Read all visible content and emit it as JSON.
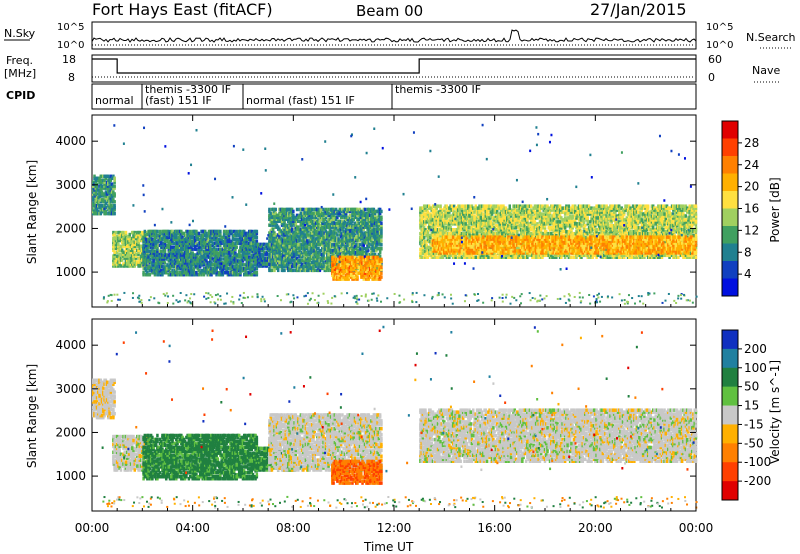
{
  "header": {
    "station": "Fort Hays East (fitACF)",
    "beam": "Beam 00",
    "date": "27/Jan/2015"
  },
  "noise_panel": {
    "left_label": "N.Sky",
    "right_label": "N.Search",
    "left_ticks": [
      "10^5",
      "10^0"
    ],
    "right_ticks": [
      "10^5",
      "10^0"
    ]
  },
  "freq_panel": {
    "left_label_1": "Freq.",
    "left_label_2": "[MHz]",
    "right_label": "Nave",
    "left_ticks": [
      "18",
      "8"
    ],
    "right_ticks": [
      "60",
      "0"
    ]
  },
  "cpid_panel": {
    "label": "CPID",
    "entries": [
      {
        "text": "normal",
        "start_h": 0.0
      },
      {
        "text": "themis -3300 IF",
        "start_h": 2.0
      },
      {
        "text": "(fast) 151 IF",
        "start_h": 0.0
      },
      {
        "text": "normal (fast) 151 IF",
        "start_h": 6.0
      },
      {
        "text": "themis -3300 IF",
        "start_h": 13.0
      }
    ]
  },
  "axes": {
    "xlabel": "Time UT",
    "xticks": [
      "00:00",
      "04:00",
      "08:00",
      "12:00",
      "16:00",
      "20:00",
      "00:00"
    ],
    "ylabel": "Slant Range [km]",
    "yticks": [
      "4000",
      "3000",
      "2000",
      "1000"
    ]
  },
  "power_scale": {
    "label": "Power [dB]",
    "ticks": [
      "28",
      "24",
      "20",
      "16",
      "12",
      "8",
      "4"
    ],
    "colors": [
      "#e00000",
      "#ff4000",
      "#ff8000",
      "#ffb000",
      "#ffe040",
      "#a0d060",
      "#40a060",
      "#208090",
      "#1040c0",
      "#0010e0"
    ]
  },
  "velocity_scale": {
    "label": "Velocity [m s^-1]",
    "ticks": [
      "200",
      "100",
      "50",
      "15",
      "-15",
      "-50",
      "-100",
      "-200"
    ],
    "colors": [
      "#1030c0",
      "#2080a0",
      "#208040",
      "#60c040",
      "#c8c8c8",
      "#ffb000",
      "#ff8000",
      "#ff4000",
      "#e00000"
    ]
  },
  "chart_data": [
    {
      "type": "heatmap",
      "title": "Power",
      "xlabel": "Time UT",
      "ylabel": "Slant Range [km]",
      "xlim": [
        0,
        24
      ],
      "ylim": [
        200,
        4600
      ],
      "colorbar": {
        "label": "Power [dB]",
        "range": [
          0,
          32
        ]
      },
      "regions": [
        {
          "t0": 0.0,
          "t1": 0.9,
          "r0": 2300,
          "r1": 3200,
          "value": 10
        },
        {
          "t0": 0.8,
          "t1": 2.2,
          "r0": 1100,
          "r1": 1900,
          "value": 14
        },
        {
          "t0": 2.0,
          "t1": 6.5,
          "r0": 900,
          "r1": 1900,
          "value": 9
        },
        {
          "t0": 6.5,
          "t1": 8.0,
          "r0": 1100,
          "r1": 1600,
          "value": 8
        },
        {
          "t0": 7.0,
          "t1": 11.5,
          "r0": 1000,
          "r1": 2400,
          "value": 10
        },
        {
          "t0": 9.5,
          "t1": 11.5,
          "r0": 800,
          "r1": 1300,
          "value": 22
        },
        {
          "t0": 13.0,
          "t1": 24.0,
          "r0": 1300,
          "r1": 2500,
          "value": 15
        },
        {
          "t0": 13.5,
          "t1": 24.0,
          "r0": 1400,
          "r1": 1800,
          "value": 21
        }
      ]
    },
    {
      "type": "heatmap",
      "title": "Velocity",
      "xlabel": "Time UT",
      "ylabel": "Slant Range [km]",
      "xlim": [
        0,
        24
      ],
      "ylim": [
        200,
        4600
      ],
      "colorbar": {
        "label": "Velocity [m s^-1]",
        "range": [
          -200,
          200
        ]
      },
      "regions": [
        {
          "t0": 0.0,
          "t1": 0.9,
          "r0": 2300,
          "r1": 3200,
          "value": -5
        },
        {
          "t0": 0.8,
          "t1": 2.2,
          "r0": 1100,
          "r1": 1900,
          "value": 0
        },
        {
          "t0": 2.0,
          "t1": 6.5,
          "r0": 900,
          "r1": 1900,
          "value": 45
        },
        {
          "t0": 6.5,
          "t1": 8.0,
          "r0": 1100,
          "r1": 1600,
          "value": 40
        },
        {
          "t0": 7.0,
          "t1": 11.5,
          "r0": 1100,
          "r1": 2400,
          "value": 0
        },
        {
          "t0": 9.5,
          "t1": 11.5,
          "r0": 800,
          "r1": 1300,
          "value": -70
        },
        {
          "t0": 13.0,
          "t1": 24.0,
          "r0": 1300,
          "r1": 2500,
          "value": 0
        }
      ]
    }
  ]
}
